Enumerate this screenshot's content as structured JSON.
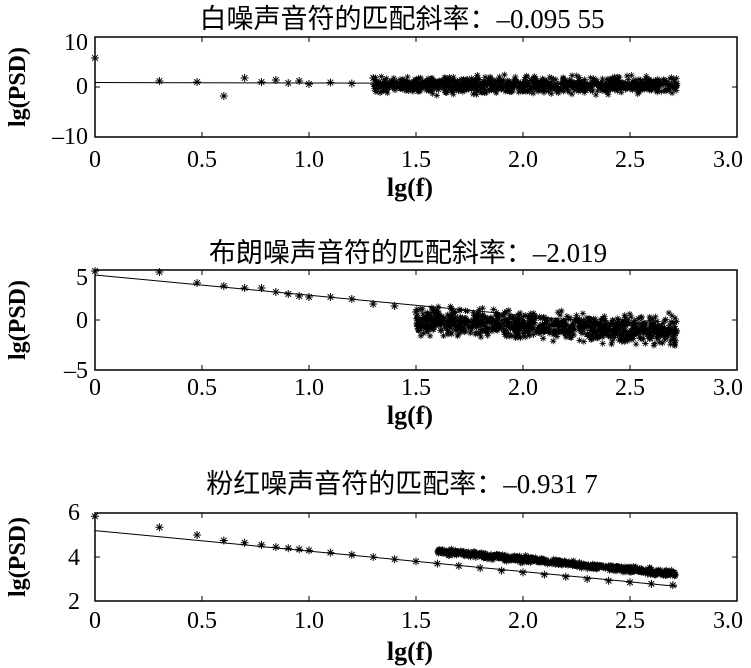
{
  "chart_data": [
    {
      "type": "scatter",
      "title": "白噪声音符的匹配斜率：–0.095 55",
      "xlabel": "lg(f)",
      "ylabel": "lg(PSD)",
      "xlim": [
        0,
        3
      ],
      "ylim": [
        -10,
        10
      ],
      "xticks": [
        "0",
        "0.5",
        "1.0",
        "1.5",
        "2.0",
        "2.5",
        "3.0"
      ],
      "yticks": [
        "10",
        "0",
        "–10"
      ],
      "ytick_values": [
        10,
        0,
        -10
      ],
      "fit": {
        "slope": -0.09555,
        "intercept": 0.9
      },
      "points": [
        [
          0,
          5.8
        ],
        [
          0.301,
          1.2
        ],
        [
          0.477,
          1.0
        ],
        [
          0.602,
          -1.8
        ],
        [
          0.699,
          1.8
        ],
        [
          0.778,
          1.0
        ],
        [
          0.845,
          1.4
        ],
        [
          0.903,
          0.8
        ],
        [
          0.954,
          1.2
        ],
        [
          1.0,
          0.6
        ],
        [
          1.1,
          0.9
        ],
        [
          1.2,
          0.7
        ],
        [
          1.3,
          1.8
        ],
        [
          1.4,
          0.9
        ],
        [
          1.5,
          1.2
        ],
        [
          1.6,
          0.4
        ],
        [
          1.7,
          -0.6
        ],
        [
          1.8,
          0.2
        ],
        [
          1.9,
          -0.3
        ],
        [
          2.0,
          0.5
        ],
        [
          2.1,
          -0.4
        ],
        [
          2.2,
          0.6
        ],
        [
          2.3,
          -0.3
        ],
        [
          2.4,
          0.5
        ],
        [
          2.5,
          -0.2
        ],
        [
          2.6,
          0.6
        ],
        [
          2.7,
          0.2
        ]
      ],
      "noise": {
        "x_start": 1.3,
        "x_end": 2.72,
        "count": 900,
        "center": 0.4,
        "spread": 1.3,
        "trend": 0
      }
    },
    {
      "type": "scatter",
      "title": "布朗噪声音符的匹配斜率：–2.019",
      "xlabel": "lg(f)",
      "ylabel": "lg(PSD)",
      "xlim": [
        0,
        3
      ],
      "ylim": [
        -5,
        5
      ],
      "xticks": [
        "0",
        "0.5",
        "1.0",
        "1.5",
        "2.0",
        "2.5",
        "3.0"
      ],
      "yticks": [
        "5",
        "0",
        "–5"
      ],
      "ytick_values": [
        5,
        0,
        -5
      ],
      "fit": {
        "slope": -2.019,
        "intercept": 4.5
      },
      "points": [
        [
          0,
          4.9
        ],
        [
          0.301,
          4.8
        ],
        [
          0.477,
          3.7
        ],
        [
          0.602,
          3.4
        ],
        [
          0.699,
          3.2
        ],
        [
          0.778,
          3.2
        ],
        [
          0.845,
          2.8
        ],
        [
          0.903,
          2.6
        ],
        [
          0.954,
          2.4
        ],
        [
          1.0,
          2.3
        ],
        [
          1.1,
          2.3
        ],
        [
          1.2,
          2.1
        ],
        [
          1.3,
          1.6
        ],
        [
          1.4,
          1.4
        ],
        [
          1.5,
          0.8
        ],
        [
          1.6,
          0.9
        ],
        [
          1.7,
          -0.2
        ],
        [
          1.8,
          -0.4
        ],
        [
          1.9,
          -0.8
        ],
        [
          2.0,
          -0.7
        ],
        [
          2.1,
          -1.1
        ],
        [
          2.2,
          -1.3
        ],
        [
          2.3,
          -1.4
        ],
        [
          2.4,
          -1.5
        ],
        [
          2.5,
          -1.6
        ],
        [
          2.6,
          -1.6
        ],
        [
          2.7,
          -1.8
        ]
      ],
      "noise": {
        "x_start": 1.5,
        "x_end": 2.72,
        "count": 900,
        "center": -0.6,
        "spread": 1.1,
        "trend": -0.9
      }
    },
    {
      "type": "scatter",
      "title": "粉红噪声音符的匹配率：–0.931 7",
      "xlabel": "lg(f)",
      "ylabel": "lg(PSD)",
      "xlim": [
        0,
        3
      ],
      "ylim": [
        2,
        6
      ],
      "xticks": [
        "0",
        "0.5",
        "1.0",
        "1.5",
        "2.0",
        "2.5",
        "3.0"
      ],
      "yticks": [
        "6",
        "4",
        "2"
      ],
      "ytick_values": [
        6,
        4,
        2
      ],
      "fit": {
        "slope": -0.9317,
        "intercept": 5.2
      },
      "points": [
        [
          0,
          5.85
        ],
        [
          0.301,
          5.35
        ],
        [
          0.477,
          5.0
        ],
        [
          0.602,
          4.75
        ],
        [
          0.699,
          4.65
        ],
        [
          0.778,
          4.55
        ],
        [
          0.845,
          4.45
        ],
        [
          0.903,
          4.4
        ],
        [
          0.954,
          4.35
        ],
        [
          1.0,
          4.3
        ],
        [
          1.1,
          4.2
        ],
        [
          1.2,
          4.1
        ],
        [
          1.3,
          4.0
        ],
        [
          1.4,
          3.9
        ],
        [
          1.5,
          3.8
        ],
        [
          1.6,
          3.7
        ],
        [
          1.7,
          3.6
        ],
        [
          1.8,
          3.5
        ],
        [
          1.9,
          3.38
        ],
        [
          2.0,
          3.3
        ],
        [
          2.1,
          3.2
        ],
        [
          2.2,
          3.1
        ],
        [
          2.3,
          3.0
        ],
        [
          2.4,
          2.92
        ],
        [
          2.5,
          2.85
        ],
        [
          2.6,
          2.78
        ],
        [
          2.7,
          2.72
        ]
      ],
      "noise": {
        "x_start": 1.6,
        "x_end": 2.72,
        "count": 700,
        "center": 3.75,
        "spread": 0.12,
        "trend": -0.93
      }
    }
  ]
}
